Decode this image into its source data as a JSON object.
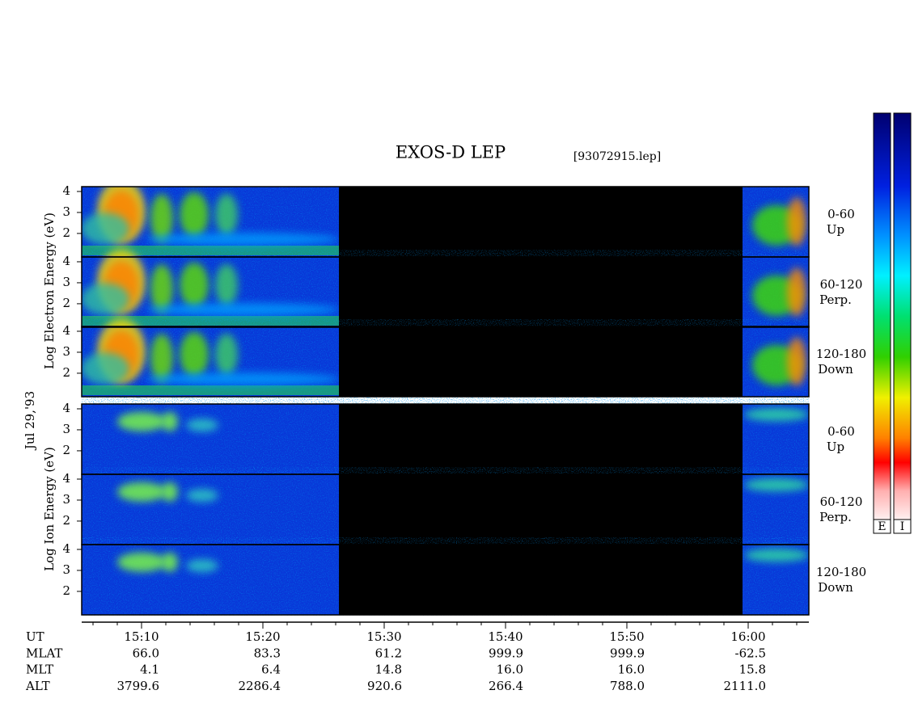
{
  "chart_data": {
    "type": "spectrogram",
    "title": "EXOS-D LEP",
    "subtitle": "[93072915.lep]",
    "date_label": "Jul 29,'93",
    "electron_ylabel": "Log Electron Energy (eV)",
    "ion_ylabel": "Log Ion Energy (eV)",
    "ylim": [
      0.88,
      4.23
    ],
    "yticks": [
      2,
      3,
      4
    ],
    "panels": [
      {
        "angle": "0-60",
        "direction": "Up"
      },
      {
        "angle": "60-120",
        "direction": "Perp."
      },
      {
        "angle": "120-180",
        "direction": "Down"
      },
      {
        "angle": "0-60",
        "direction": "Up"
      },
      {
        "angle": "60-120",
        "direction": "Perp."
      },
      {
        "angle": "120-180",
        "direction": "Down"
      }
    ],
    "xticks": [
      "15:10",
      "15:20",
      "15:30",
      "15:40",
      "15:50",
      "16:00"
    ],
    "colorbars": [
      "E",
      "I"
    ],
    "orbit": {
      "rows": [
        {
          "label": "UT",
          "values": []
        },
        {
          "label": "MLAT",
          "values": [
            "66.0",
            "83.3",
            "61.2",
            "999.9",
            "999.9",
            "-62.5"
          ]
        },
        {
          "label": "MLT",
          "values": [
            "4.1",
            "6.4",
            "14.8",
            "16.0",
            "16.0",
            "15.8"
          ]
        },
        {
          "label": "ALT",
          "values": [
            "3799.6",
            "2286.4",
            "920.6",
            "266.4",
            "788.0",
            "2111.0"
          ]
        }
      ]
    }
  }
}
